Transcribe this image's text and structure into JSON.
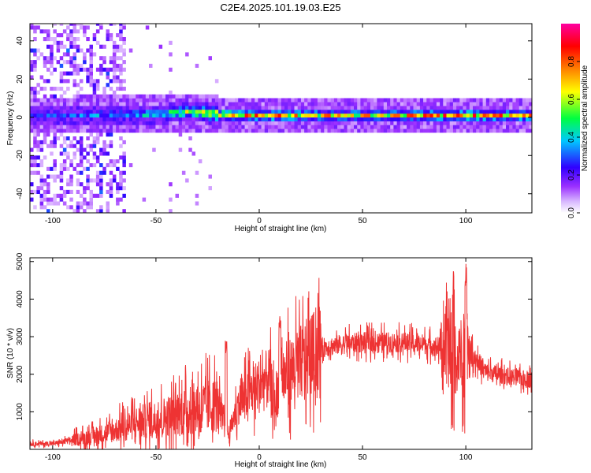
{
  "figure": {
    "title": "C2E4.2025.101.19.03.E25"
  },
  "chart_data": [
    {
      "type": "heatmap",
      "title": "C2E4.2025.101.19.03.E25",
      "xlabel": "Height of straight line (km)",
      "ylabel": "Frequency (Hz)",
      "xlim": [
        -111,
        132
      ],
      "ylim": [
        -50,
        49
      ],
      "xticks": [
        -100,
        -50,
        0,
        50,
        100
      ],
      "yticks": [
        -40,
        -20,
        0,
        20,
        40
      ],
      "colorbar": {
        "label": "Normalized spectral amplitude",
        "range": [
          0.0,
          1.0
        ],
        "ticks": [
          0.0,
          0.2,
          0.4,
          0.6,
          0.8
        ],
        "tick_labels": [
          "0.0",
          "0.2",
          "0.4",
          "0.6",
          "0.8"
        ],
        "colormap": [
          "#ffffff",
          "#9b30ff",
          "#3000ff",
          "#00c8ff",
          "#00ff40",
          "#ffff00",
          "#ff8000",
          "#ff0000",
          "#ff00a0"
        ]
      },
      "band_center_hz": [
        {
          "x": -90,
          "y": 0.0
        },
        {
          "x": -60,
          "y": 0.5
        },
        {
          "x": -45,
          "y": 1.0
        },
        {
          "x": -35,
          "y": 2.0
        },
        {
          "x": -20,
          "y": 0.5
        },
        {
          "x": 0,
          "y": 0.0
        },
        {
          "x": 50,
          "y": 0.0
        },
        {
          "x": 100,
          "y": 0.0
        },
        {
          "x": 132,
          "y": 0.0
        }
      ],
      "band_peak_amplitude": [
        {
          "x": -90,
          "y": 0.35
        },
        {
          "x": -60,
          "y": 0.45
        },
        {
          "x": -40,
          "y": 0.6
        },
        {
          "x": -30,
          "y": 0.7
        },
        {
          "x": -15,
          "y": 0.85
        },
        {
          "x": 0,
          "y": 0.85
        },
        {
          "x": 10,
          "y": 0.8
        },
        {
          "x": 30,
          "y": 0.75
        },
        {
          "x": 60,
          "y": 0.75
        },
        {
          "x": 90,
          "y": 0.85
        },
        {
          "x": 132,
          "y": 0.8
        }
      ]
    },
    {
      "type": "line",
      "xlabel": "Height of straight line (km)",
      "ylabel": "SNR (10 * v/v)",
      "xlim": [
        -111,
        132
      ],
      "ylim": [
        0,
        5100
      ],
      "xticks": [
        -100,
        -50,
        0,
        50,
        100
      ],
      "yticks": [
        1000,
        2000,
        3000,
        4000,
        5000
      ],
      "color": "#ee3333",
      "series": [
        {
          "x": [
            -111,
            -100,
            -90,
            -80,
            -70,
            -60,
            -50,
            -40,
            -30,
            -20,
            -15,
            -10,
            -5,
            0,
            5,
            8,
            10,
            12,
            15,
            20,
            25,
            30,
            40,
            50,
            60,
            70,
            80,
            90,
            95,
            98,
            100,
            102,
            110,
            120,
            132
          ],
          "y": [
            150,
            150,
            250,
            350,
            500,
            700,
            800,
            950,
            1100,
            1200,
            400,
            1200,
            1500,
            1700,
            1900,
            1000,
            2300,
            1900,
            2100,
            2300,
            2500,
            2700,
            2800,
            2850,
            2850,
            2850,
            2800,
            2700,
            2200,
            2600,
            3100,
            2600,
            2050,
            1950,
            1850
          ]
        }
      ],
      "peaks": [
        {
          "x": -16,
          "y": 2900
        },
        {
          "x": 10,
          "y": 3550
        },
        {
          "x": 94,
          "y": 4750
        },
        {
          "x": 100,
          "y": 5100
        }
      ]
    }
  ]
}
